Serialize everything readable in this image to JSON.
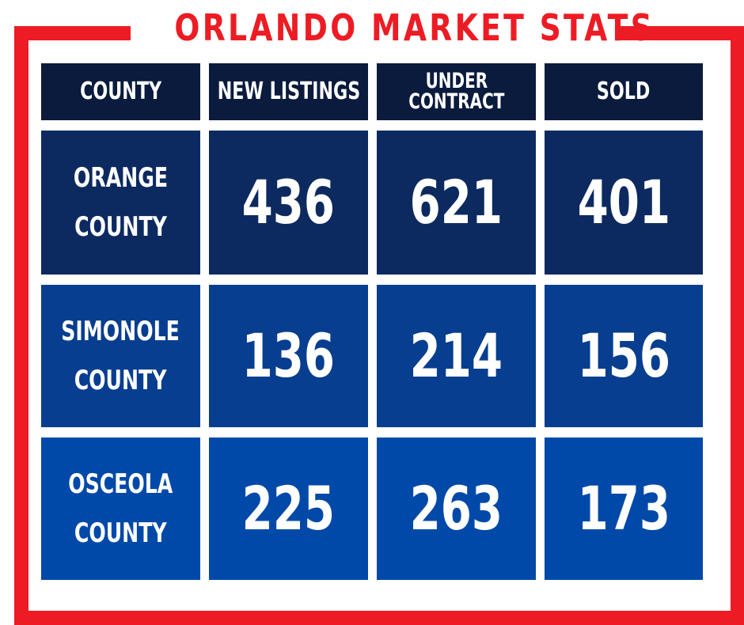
{
  "title": "ORLANDO MARKET STATS",
  "colors": {
    "frame": "#ed1c24",
    "header": "#0a1b3d",
    "row1": "#0d2a60",
    "row2": "#073e8f",
    "row3": "#0049a8",
    "text": "#ffffff"
  },
  "table": {
    "headers": {
      "county": "COUNTY",
      "new_listings": "NEW LISTINGS",
      "under_contract_line1": "UNDER",
      "under_contract_line2": "CONTRACT",
      "sold": "SOLD"
    },
    "rows": [
      {
        "county_line1": "ORANGE",
        "county_line2": "COUNTY",
        "new_listings": "436",
        "under_contract": "621",
        "sold": "401"
      },
      {
        "county_line1": "SIMONOLE",
        "county_line2": "COUNTY",
        "new_listings": "136",
        "under_contract": "214",
        "sold": "156"
      },
      {
        "county_line1": "OSCEOLA",
        "county_line2": "COUNTY",
        "new_listings": "225",
        "under_contract": "263",
        "sold": "173"
      }
    ]
  }
}
